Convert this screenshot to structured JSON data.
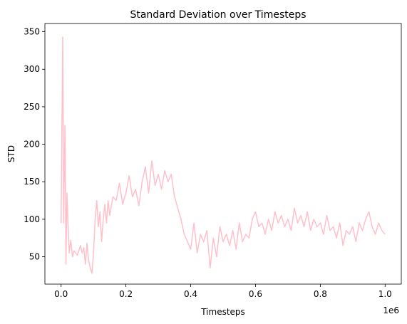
{
  "chart_data": {
    "type": "line",
    "title": "Standard Deviation over Timesteps",
    "xlabel": "Timesteps",
    "ylabel": "STD",
    "x_scale_label": "1e6",
    "x_ticks": [
      0.0,
      0.2,
      0.4,
      0.6,
      0.8,
      1.0
    ],
    "x_tick_labels": [
      "0.0",
      "0.2",
      "0.4",
      "0.6",
      "0.8",
      "1.0"
    ],
    "y_ticks": [
      50,
      100,
      150,
      200,
      250,
      300,
      350
    ],
    "y_tick_labels": [
      "50",
      "100",
      "150",
      "200",
      "250",
      "300",
      "350"
    ],
    "xlim": [
      -0.05,
      1.05
    ],
    "ylim": [
      13.5,
      361
    ],
    "grid": false,
    "legend": "none",
    "line_color": "#ffc0cb",
    "series": [
      {
        "x": [
          0.0,
          0.005,
          0.008,
          0.012,
          0.015,
          0.018,
          0.02,
          0.025,
          0.03,
          0.035,
          0.04,
          0.05,
          0.06,
          0.065,
          0.07,
          0.075,
          0.08,
          0.085,
          0.09,
          0.095,
          0.1,
          0.105,
          0.11,
          0.115,
          0.12,
          0.125,
          0.13,
          0.135,
          0.14,
          0.145,
          0.15,
          0.16,
          0.17,
          0.18,
          0.19,
          0.2,
          0.21,
          0.22,
          0.23,
          0.24,
          0.25,
          0.26,
          0.27,
          0.28,
          0.29,
          0.3,
          0.31,
          0.32,
          0.33,
          0.34,
          0.35,
          0.36,
          0.37,
          0.38,
          0.39,
          0.4,
          0.41,
          0.42,
          0.43,
          0.44,
          0.45,
          0.46,
          0.47,
          0.48,
          0.49,
          0.5,
          0.51,
          0.52,
          0.53,
          0.54,
          0.55,
          0.56,
          0.57,
          0.58,
          0.59,
          0.6,
          0.61,
          0.62,
          0.63,
          0.64,
          0.65,
          0.66,
          0.67,
          0.68,
          0.69,
          0.7,
          0.71,
          0.72,
          0.73,
          0.74,
          0.75,
          0.76,
          0.77,
          0.78,
          0.79,
          0.8,
          0.81,
          0.82,
          0.83,
          0.84,
          0.85,
          0.86,
          0.87,
          0.88,
          0.89,
          0.9,
          0.91,
          0.92,
          0.93,
          0.94,
          0.95,
          0.96,
          0.97,
          0.98,
          0.99,
          1.0
        ],
        "y": [
          95,
          343,
          95,
          225,
          40,
          135,
          110,
          55,
          72,
          50,
          58,
          52,
          65,
          55,
          62,
          40,
          68,
          45,
          35,
          28,
          55,
          100,
          125,
          90,
          110,
          70,
          100,
          120,
          95,
          125,
          105,
          130,
          125,
          148,
          120,
          135,
          158,
          130,
          140,
          118,
          150,
          170,
          135,
          178,
          145,
          160,
          140,
          165,
          150,
          160,
          130,
          115,
          100,
          80,
          70,
          60,
          95,
          55,
          80,
          70,
          85,
          35,
          75,
          50,
          90,
          70,
          80,
          65,
          85,
          60,
          95,
          70,
          80,
          75,
          100,
          110,
          90,
          95,
          80,
          100,
          85,
          110,
          95,
          105,
          90,
          100,
          85,
          115,
          95,
          105,
          90,
          110,
          85,
          100,
          90,
          95,
          80,
          105,
          85,
          90,
          75,
          95,
          65,
          85,
          80,
          90,
          70,
          95,
          85,
          100,
          110,
          90,
          80,
          95,
          85,
          80
        ]
      }
    ]
  }
}
